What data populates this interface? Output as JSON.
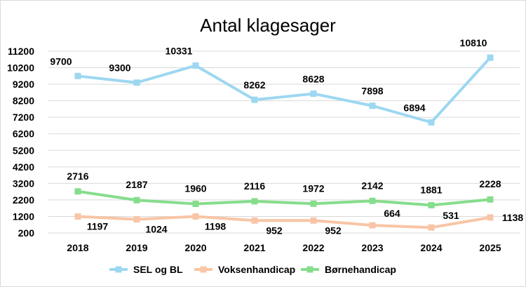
{
  "chart_data": {
    "type": "line",
    "title": "Antal klagesager",
    "categories": [
      "2018",
      "2019",
      "2020",
      "2021",
      "2022",
      "2023",
      "2024",
      "2025"
    ],
    "ylim": [
      200,
      11200
    ],
    "yticks": [
      200,
      1200,
      2200,
      3200,
      4200,
      5200,
      6200,
      7200,
      8200,
      9200,
      10200,
      11200
    ],
    "grid": true,
    "legend_position": "bottom",
    "series": [
      {
        "name": "SEL og BL",
        "color": "#9dd7f1",
        "values": [
          9700,
          9300,
          10331,
          8262,
          8628,
          7898,
          6894,
          10810
        ]
      },
      {
        "name": "Voksenhandicap",
        "color": "#f8c5a6",
        "values": [
          1197,
          1024,
          1198,
          952,
          952,
          664,
          531,
          1138
        ]
      },
      {
        "name": "Børnehandicap",
        "color": "#86dd8c",
        "values": [
          2716,
          2187,
          1960,
          2116,
          1972,
          2142,
          1881,
          2228
        ]
      }
    ]
  }
}
